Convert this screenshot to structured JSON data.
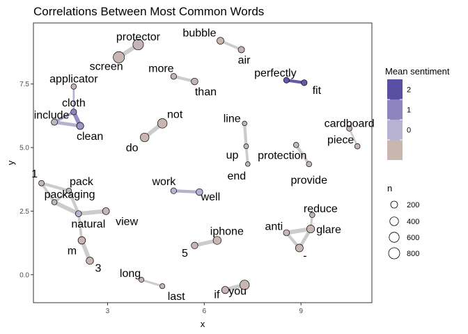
{
  "chart_data": {
    "type": "network",
    "title": "Correlations Between Most Common Words",
    "xlabel": "x",
    "ylabel": "y",
    "xlim": [
      0.7,
      11.2
    ],
    "ylim": [
      -1.1,
      9.9
    ],
    "xticks": [
      3,
      6,
      9
    ],
    "yticks": [
      0.0,
      2.5,
      5.0,
      7.5
    ],
    "grid": false,
    "legend_placement": "right",
    "sentiment_legend": {
      "title": "Mean sentiment",
      "ticks": [
        2,
        1,
        0
      ],
      "colors": [
        "#5a4fa3",
        "#8e84c0",
        "#b8b2d2",
        "#c9b6af"
      ]
    },
    "size_legend": {
      "title": "n",
      "values": [
        200,
        400,
        600,
        800
      ]
    },
    "nodes": [
      {
        "label": "protector",
        "x": 3.95,
        "y": 9.05,
        "n": 700,
        "sentiment": 0.2
      },
      {
        "label": "screen",
        "x": 3.35,
        "y": 8.55,
        "n": 820,
        "sentiment": 0.1
      },
      {
        "label": "bubble",
        "x": 6.5,
        "y": 9.2,
        "n": 200,
        "sentiment": 0.0
      },
      {
        "label": "air",
        "x": 7.15,
        "y": 8.85,
        "n": 150,
        "sentiment": 0.4
      },
      {
        "label": "applicator",
        "x": 1.95,
        "y": 7.4,
        "n": 80,
        "sentiment": 0.3
      },
      {
        "label": "more",
        "x": 5.05,
        "y": 7.8,
        "n": 110,
        "sentiment": 0.4
      },
      {
        "label": "than",
        "x": 5.7,
        "y": 7.6,
        "n": 180,
        "sentiment": 0.4
      },
      {
        "label": "perfectly",
        "x": 8.55,
        "y": 7.65,
        "n": 100,
        "sentiment": 2.8
      },
      {
        "label": "fit",
        "x": 9.1,
        "y": 7.55,
        "n": 110,
        "sentiment": 2.8
      },
      {
        "label": "cloth",
        "x": 1.95,
        "y": 6.4,
        "n": 110,
        "sentiment": 2.0
      },
      {
        "label": "include",
        "x": 1.35,
        "y": 6.0,
        "n": 140,
        "sentiment": 0.5
      },
      {
        "label": "clean",
        "x": 2.15,
        "y": 5.85,
        "n": 220,
        "sentiment": 1.6
      },
      {
        "label": "not",
        "x": 4.7,
        "y": 5.95,
        "n": 520,
        "sentiment": -0.1
      },
      {
        "label": "do",
        "x": 4.15,
        "y": 5.4,
        "n": 400,
        "sentiment": -0.1
      },
      {
        "label": "line",
        "x": 7.25,
        "y": 5.95,
        "n": 40,
        "sentiment": 0.5
      },
      {
        "label": "up",
        "x": 7.3,
        "y": 5.05,
        "n": 50,
        "sentiment": 0.5
      },
      {
        "label": "end",
        "x": 7.35,
        "y": 4.35,
        "n": 40,
        "sentiment": 0.5
      },
      {
        "label": "cardboard",
        "x": 10.5,
        "y": 5.75,
        "n": 80,
        "sentiment": 0.3
      },
      {
        "label": "piece",
        "x": 10.75,
        "y": 5.05,
        "n": 80,
        "sentiment": 0.3
      },
      {
        "label": "protection",
        "x": 8.85,
        "y": 5.1,
        "n": 80,
        "sentiment": 0.5
      },
      {
        "label": "provide",
        "x": 9.25,
        "y": 4.35,
        "n": 80,
        "sentiment": 0.5
      },
      {
        "label": "work",
        "x": 5.05,
        "y": 3.3,
        "n": 110,
        "sentiment": 0.9
      },
      {
        "label": "well",
        "x": 5.85,
        "y": 3.25,
        "n": 180,
        "sentiment": 1.0
      },
      {
        "label": "1",
        "x": 0.95,
        "y": 3.6,
        "n": 90,
        "sentiment": 0.5
      },
      {
        "label": "pack",
        "x": 1.8,
        "y": 3.3,
        "n": 80,
        "sentiment": 0.5
      },
      {
        "label": "packaging",
        "x": 1.35,
        "y": 2.85,
        "n": 80,
        "sentiment": 0.5
      },
      {
        "label": "view",
        "x": 2.95,
        "y": 2.5,
        "n": 200,
        "sentiment": 0.3
      },
      {
        "label": "natural",
        "x": 2.1,
        "y": 2.4,
        "n": 130,
        "sentiment": 1.0
      },
      {
        "label": "m",
        "x": 2.2,
        "y": 1.35,
        "n": 250,
        "sentiment": 0.1
      },
      {
        "label": "3",
        "x": 2.45,
        "y": 0.55,
        "n": 240,
        "sentiment": 0.1
      },
      {
        "label": "reduce",
        "x": 9.35,
        "y": 2.35,
        "n": 70,
        "sentiment": 0.3
      },
      {
        "label": "anti",
        "x": 8.55,
        "y": 1.65,
        "n": 130,
        "sentiment": 0.1
      },
      {
        "label": "glare",
        "x": 9.3,
        "y": 1.8,
        "n": 300,
        "sentiment": 0.1
      },
      {
        "label": "-",
        "x": 8.95,
        "y": 1.05,
        "n": 280,
        "sentiment": 0.1
      },
      {
        "label": "iphone",
        "x": 6.4,
        "y": 1.35,
        "n": 320,
        "sentiment": 0.1
      },
      {
        "label": "5",
        "x": 5.7,
        "y": 1.15,
        "n": 170,
        "sentiment": 0.1
      },
      {
        "label": "long",
        "x": 4.05,
        "y": -0.2,
        "n": 60,
        "sentiment": 0.3
      },
      {
        "label": "last",
        "x": 4.7,
        "y": -0.45,
        "n": 60,
        "sentiment": 0.3
      },
      {
        "label": "if",
        "x": 6.65,
        "y": -0.6,
        "n": 220,
        "sentiment": 0.1
      },
      {
        "label": "you",
        "x": 7.25,
        "y": -0.4,
        "n": 520,
        "sentiment": 0.1
      }
    ],
    "edges": [
      {
        "from": "screen",
        "to": "protector",
        "weight": 0.9
      },
      {
        "from": "bubble",
        "to": "air",
        "weight": 0.5
      },
      {
        "from": "more",
        "to": "than",
        "weight": 0.6
      },
      {
        "from": "perfectly",
        "to": "fit",
        "weight": 0.6
      },
      {
        "from": "cloth",
        "to": "clean",
        "weight": 0.9
      },
      {
        "from": "include",
        "to": "clean",
        "weight": 0.7
      },
      {
        "from": "include",
        "to": "cloth",
        "weight": 0.5
      },
      {
        "from": "applicator",
        "to": "cloth",
        "weight": 0.3
      },
      {
        "from": "do",
        "to": "not",
        "weight": 0.9
      },
      {
        "from": "line",
        "to": "up",
        "weight": 0.6
      },
      {
        "from": "up",
        "to": "end",
        "weight": 0.5
      },
      {
        "from": "cardboard",
        "to": "piece",
        "weight": 0.3
      },
      {
        "from": "protection",
        "to": "provide",
        "weight": 0.6
      },
      {
        "from": "work",
        "to": "well",
        "weight": 0.6
      },
      {
        "from": "1",
        "to": "pack",
        "weight": 0.6
      },
      {
        "from": "1",
        "to": "packaging",
        "weight": 0.5
      },
      {
        "from": "pack",
        "to": "packaging",
        "weight": 0.5
      },
      {
        "from": "pack",
        "to": "natural",
        "weight": 0.6
      },
      {
        "from": "packaging",
        "to": "natural",
        "weight": 0.9
      },
      {
        "from": "natural",
        "to": "view",
        "weight": 0.9
      },
      {
        "from": "natural",
        "to": "m",
        "weight": 0.5
      },
      {
        "from": "m",
        "to": "3",
        "weight": 0.9
      },
      {
        "from": "anti",
        "to": "glare",
        "weight": 0.9
      },
      {
        "from": "glare",
        "to": "-",
        "weight": 0.7
      },
      {
        "from": "anti",
        "to": "-",
        "weight": 0.6
      },
      {
        "from": "reduce",
        "to": "glare",
        "weight": 0.4
      },
      {
        "from": "5",
        "to": "iphone",
        "weight": 0.8
      },
      {
        "from": "long",
        "to": "last",
        "weight": 0.4
      },
      {
        "from": "if",
        "to": "you",
        "weight": 0.9
      }
    ]
  }
}
